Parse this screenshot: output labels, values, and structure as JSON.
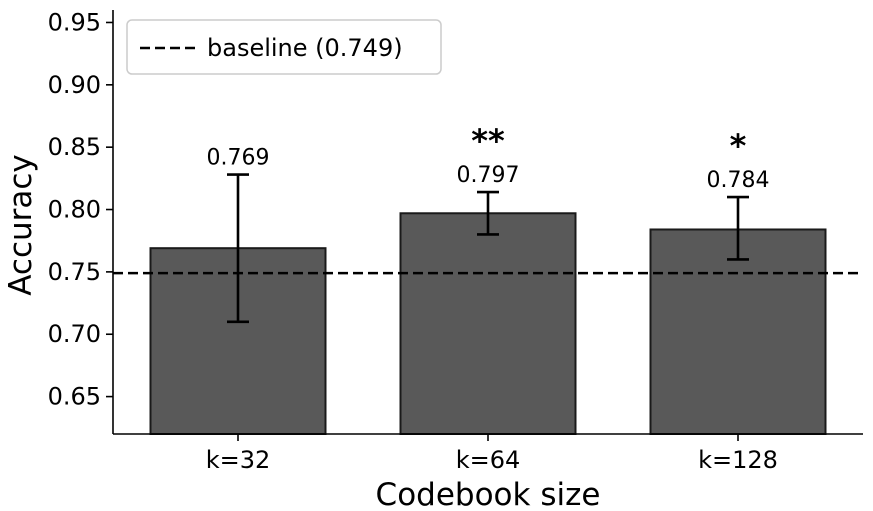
{
  "chart_data": {
    "type": "bar",
    "categories": [
      "k=32",
      "k=64",
      "k=128"
    ],
    "values": [
      0.769,
      0.797,
      0.784
    ],
    "value_labels": [
      "0.769",
      "0.797",
      "0.784"
    ],
    "error_bars": [
      {
        "low": 0.71,
        "high": 0.828
      },
      {
        "low": 0.78,
        "high": 0.814
      },
      {
        "low": 0.76,
        "high": 0.81
      }
    ],
    "significance": [
      "",
      "**",
      "*"
    ],
    "baseline": {
      "value": 0.749,
      "label": "baseline (0.749)",
      "style": "dashed"
    },
    "xlabel": "Codebook size",
    "ylabel": "Accuracy",
    "ylim": [
      0.62,
      0.96
    ],
    "yticks": [
      0.65,
      0.7,
      0.75,
      0.8,
      0.85,
      0.9,
      0.95
    ],
    "ytick_labels": [
      "0.65",
      "0.70",
      "0.75",
      "0.80",
      "0.85",
      "0.90",
      "0.95"
    ],
    "grid": false,
    "legend_position": "top-left",
    "colors": {
      "bar": "#595959",
      "bar_edge": "#1a1a1a",
      "baseline": "#000000",
      "error": "#000000"
    }
  }
}
